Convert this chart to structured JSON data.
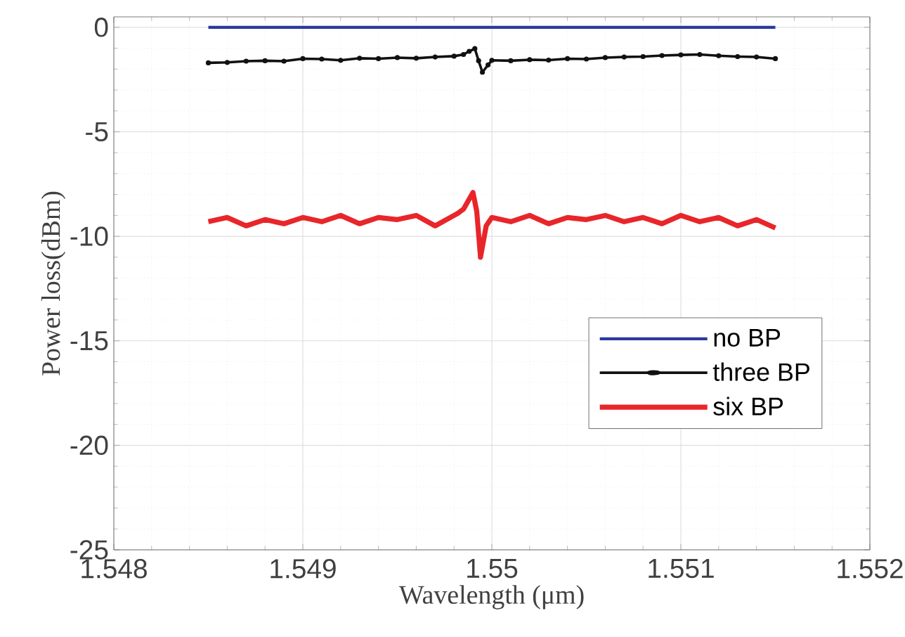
{
  "chart_data": {
    "type": "line",
    "xlabel": "Wavelength (μm)",
    "ylabel": "Power loss(dBm)",
    "xlim": [
      1.548,
      1.552
    ],
    "xticks": [
      1.548,
      1.549,
      1.55,
      1.551,
      1.552
    ],
    "ylim": [
      -25,
      0.5
    ],
    "yticks": [
      -25,
      -20,
      -15,
      -10,
      -5,
      0
    ],
    "grid": true,
    "legend": "bottom right",
    "series": [
      {
        "name": "no BP",
        "color": "#2b3a9e",
        "x": [
          1.5485,
          1.5515
        ],
        "values": [
          0,
          0
        ]
      },
      {
        "name": "three BP",
        "color": "#111111",
        "marker": "circle",
        "x": [
          1.5485,
          1.5486,
          1.5487,
          1.5488,
          1.5489,
          1.549,
          1.5491,
          1.5492,
          1.5493,
          1.5494,
          1.5495,
          1.5496,
          1.5497,
          1.5498,
          1.54985,
          1.54988,
          1.54991,
          1.54993,
          1.54995,
          1.54998,
          1.55,
          1.5501,
          1.5502,
          1.5503,
          1.5504,
          1.5505,
          1.5506,
          1.5507,
          1.5508,
          1.5509,
          1.551,
          1.5511,
          1.5512,
          1.5513,
          1.5514,
          1.5515
        ],
        "values": [
          -1.7,
          -1.68,
          -1.62,
          -1.6,
          -1.62,
          -1.5,
          -1.52,
          -1.58,
          -1.48,
          -1.5,
          -1.45,
          -1.48,
          -1.42,
          -1.38,
          -1.3,
          -1.15,
          -1.02,
          -1.6,
          -2.15,
          -1.8,
          -1.58,
          -1.6,
          -1.55,
          -1.57,
          -1.5,
          -1.52,
          -1.45,
          -1.42,
          -1.4,
          -1.35,
          -1.32,
          -1.3,
          -1.36,
          -1.4,
          -1.42,
          -1.5
        ]
      },
      {
        "name": "six BP",
        "color": "#e8262a",
        "x": [
          1.5485,
          1.5486,
          1.5487,
          1.5488,
          1.5489,
          1.549,
          1.5491,
          1.5492,
          1.5493,
          1.5494,
          1.5495,
          1.5496,
          1.5497,
          1.5498,
          1.54982,
          1.54985,
          1.5499,
          1.54992,
          1.54994,
          1.54997,
          1.55,
          1.5501,
          1.5502,
          1.5503,
          1.5504,
          1.5505,
          1.5506,
          1.5507,
          1.5508,
          1.5509,
          1.551,
          1.5511,
          1.5512,
          1.5513,
          1.5514,
          1.5515
        ],
        "values": [
          -9.3,
          -9.1,
          -9.5,
          -9.2,
          -9.4,
          -9.1,
          -9.3,
          -9.0,
          -9.4,
          -9.1,
          -9.2,
          -9.0,
          -9.5,
          -9.0,
          -8.9,
          -8.7,
          -7.9,
          -8.8,
          -11.0,
          -9.5,
          -9.1,
          -9.3,
          -9.0,
          -9.4,
          -9.1,
          -9.2,
          -9.0,
          -9.3,
          -9.1,
          -9.4,
          -9.0,
          -9.3,
          -9.1,
          -9.5,
          -9.2,
          -9.6
        ]
      }
    ]
  }
}
